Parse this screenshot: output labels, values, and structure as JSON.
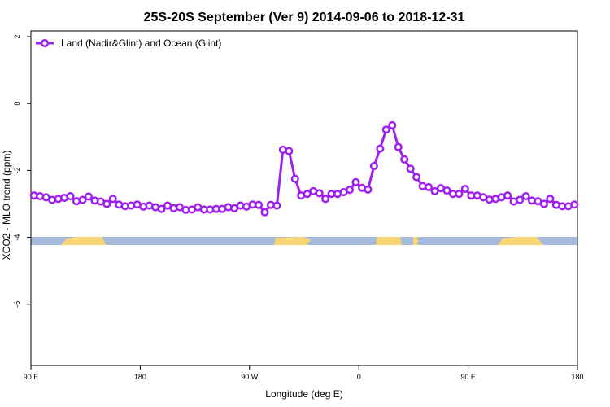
{
  "chart_data": {
    "type": "line",
    "title": "25S-20S September (Ver 9)   2014-09-06 to 2018-12-31",
    "x_label": "Longitude (deg E)",
    "y_label": "XCO2 - MLO trend (ppm)",
    "xlim": [
      90,
      540
    ],
    "xticks": [
      {
        "value": 90,
        "label": "90 E"
      },
      180,
      {
        "value": 270,
        "label": "90 W"
      },
      {
        "value": 360,
        "label": "0"
      },
      {
        "value": 450,
        "label": "90 E"
      },
      {
        "value": 540,
        "label": "180"
      }
    ],
    "ylim": [
      -7.83,
      2.17
    ],
    "yticks": [
      2,
      0,
      -2,
      -4,
      -6
    ],
    "legend": "top-left",
    "x": [
      92.5,
      97.5,
      102.5,
      107.5,
      112.5,
      117.5,
      122.5,
      127.5,
      132.5,
      137.5,
      142.5,
      147.5,
      152.5,
      157.5,
      162.5,
      167.5,
      172.5,
      177.5,
      182.5,
      187.5,
      192.5,
      197.5,
      202.5,
      207.5,
      212.5,
      217.5,
      222.5,
      227.5,
      232.5,
      237.5,
      242.5,
      247.5,
      252.5,
      257.5,
      262.5,
      267.5,
      272.5,
      277.5,
      282.5,
      287.5,
      292.5,
      297.5,
      302.5,
      307.5,
      312.5,
      317.5,
      322.5,
      327.5,
      332.5,
      337.5,
      342.5,
      347.5,
      352.5,
      357.5,
      362.5,
      367.5,
      372.5,
      377.5,
      382.5,
      387.5,
      392.5,
      397.5,
      402.5,
      407.5,
      412.5,
      417.5,
      422.5,
      427.5,
      432.5,
      437.5,
      442.5,
      447.5,
      452.5,
      457.5,
      462.5,
      467.5,
      472.5,
      477.5,
      482.5,
      487.5,
      492.5,
      497.5,
      502.5,
      507.5,
      512.5,
      517.5,
      522.5,
      527.5,
      532.5,
      537.5
    ],
    "series": [
      {
        "name": "Land (Nadir&Glint) and Ocean (Glint)",
        "color": "#a020f0",
        "values": [
          -2.75,
          -2.77,
          -2.8,
          -2.88,
          -2.85,
          -2.82,
          -2.77,
          -2.92,
          -2.88,
          -2.78,
          -2.9,
          -2.93,
          -3.0,
          -2.85,
          -3.02,
          -3.07,
          -3.05,
          -3.02,
          -3.08,
          -3.05,
          -3.1,
          -3.15,
          -3.05,
          -3.13,
          -3.1,
          -3.18,
          -3.17,
          -3.1,
          -3.17,
          -3.17,
          -3.15,
          -3.15,
          -3.1,
          -3.13,
          -3.05,
          -3.08,
          -3.02,
          -3.03,
          -3.25,
          -3.03,
          -3.05,
          -1.38,
          -1.42,
          -2.25,
          -2.75,
          -2.7,
          -2.62,
          -2.68,
          -2.85,
          -2.7,
          -2.7,
          -2.65,
          -2.58,
          -2.35,
          -2.52,
          -2.57,
          -1.87,
          -1.35,
          -0.78,
          -0.65,
          -1.3,
          -1.67,
          -1.95,
          -2.2,
          -2.47,
          -2.5,
          -2.62,
          -2.53,
          -2.6,
          -2.7,
          -2.7,
          -2.55,
          -2.75,
          -2.75,
          -2.8,
          -2.87,
          -2.85,
          -2.8,
          -2.75,
          -2.93,
          -2.88,
          -2.77,
          -2.9,
          -2.92,
          -3.0,
          -2.85,
          -3.03,
          -3.07,
          -3.07,
          -3.02
        ]
      }
    ]
  }
}
